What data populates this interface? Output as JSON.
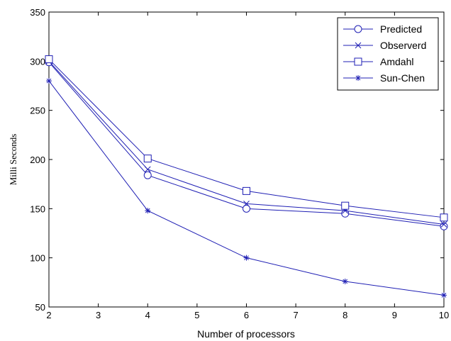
{
  "chart_data": {
    "type": "line",
    "title": "",
    "xlabel": "Number of processors",
    "ylabel": "Milli Seconds",
    "xlim": [
      2,
      10
    ],
    "ylim": [
      50,
      350
    ],
    "xticks": [
      2,
      3,
      4,
      5,
      6,
      7,
      8,
      9,
      10
    ],
    "yticks": [
      50,
      100,
      150,
      200,
      250,
      300,
      350
    ],
    "grid": false,
    "legend_position": "top-right",
    "x": [
      2,
      4,
      6,
      8,
      10
    ],
    "series": [
      {
        "name": "Predicted",
        "marker": "circle",
        "color": "#1f1fb4",
        "values": [
          299,
          184,
          150,
          145,
          132
        ]
      },
      {
        "name": "Observerd",
        "marker": "x",
        "color": "#1f1fb4",
        "values": [
          300,
          190,
          155,
          148,
          134
        ]
      },
      {
        "name": "Amdahl",
        "marker": "square",
        "color": "#1f1fb4",
        "values": [
          302,
          201,
          168,
          153,
          141
        ]
      },
      {
        "name": "Sun-Chen",
        "marker": "star",
        "color": "#1f1fb4",
        "values": [
          280,
          148,
          100,
          76,
          62
        ]
      }
    ]
  }
}
